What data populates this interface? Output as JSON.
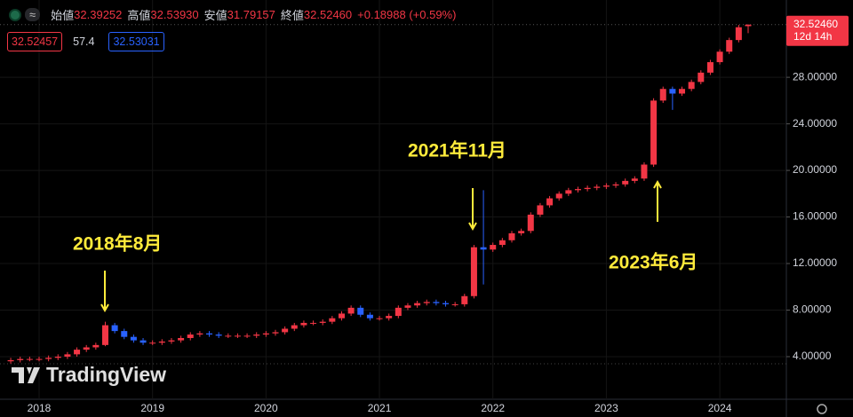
{
  "chart_data": {
    "type": "candlestick",
    "header": {
      "symbol": "≈",
      "items": [
        {
          "label": "始値",
          "value": "32.39252"
        },
        {
          "label": "高値",
          "value": "32.53930"
        },
        {
          "label": "安値",
          "value": "31.79157"
        },
        {
          "label": "終値",
          "value": "32.52460"
        }
      ],
      "change": "+0.18988 (+0.59%)"
    },
    "indicators": [
      "32.52457",
      "57.4",
      "32.53031"
    ],
    "last_price": {
      "value": 32.5246,
      "label": "32.52460"
    },
    "countdown": "12d 14h",
    "watermark": "TradingView",
    "annotations": [
      "2018年8月",
      "2021年11月",
      "2023年6月"
    ],
    "up_color": "#f23645",
    "down_color": "#2962ff",
    "categories": [
      null,
      null,
      null,
      "2018",
      null,
      null,
      null,
      null,
      null,
      null,
      null,
      null,
      null,
      null,
      null,
      "2019",
      null,
      null,
      null,
      null,
      null,
      null,
      null,
      null,
      null,
      null,
      null,
      "2020",
      null,
      null,
      null,
      null,
      null,
      null,
      null,
      null,
      null,
      null,
      null,
      "2021",
      null,
      null,
      null,
      null,
      null,
      null,
      null,
      null,
      null,
      null,
      null,
      "2022",
      null,
      null,
      null,
      null,
      null,
      null,
      null,
      null,
      null,
      null,
      null,
      "2023",
      null,
      null,
      null,
      null,
      null,
      null,
      null,
      null,
      null,
      null,
      null,
      "2024",
      null,
      null,
      null
    ],
    "open": [
      3.6,
      3.7,
      3.8,
      3.8,
      3.8,
      3.9,
      4.0,
      4.2,
      4.6,
      4.8,
      5.0,
      6.7,
      6.2,
      5.7,
      5.4,
      5.2,
      5.2,
      5.3,
      5.4,
      5.6,
      5.9,
      6.0,
      5.9,
      5.8,
      5.8,
      5.8,
      5.8,
      5.9,
      6.0,
      6.1,
      6.4,
      6.7,
      6.9,
      6.9,
      7.0,
      7.3,
      7.7,
      8.2,
      7.6,
      7.3,
      7.3,
      7.5,
      8.2,
      8.4,
      8.6,
      8.7,
      8.6,
      8.5,
      8.5,
      9.2,
      13.4,
      13.2,
      13.6,
      14.0,
      14.6,
      14.8,
      16.2,
      17.0,
      17.6,
      18.0,
      18.3,
      18.4,
      18.5,
      18.6,
      18.7,
      18.8,
      19.1,
      19.3,
      20.5,
      26.0,
      27.0,
      26.6,
      27.0,
      27.6,
      28.4,
      29.3,
      30.2,
      31.2,
      32.39252
    ],
    "high": [
      3.9,
      4.0,
      4.0,
      4.0,
      4.1,
      4.2,
      4.4,
      4.8,
      5.0,
      5.2,
      7.0,
      6.9,
      6.4,
      5.9,
      5.6,
      5.4,
      5.5,
      5.6,
      5.8,
      6.1,
      6.2,
      6.2,
      6.1,
      6.0,
      6.0,
      6.0,
      6.1,
      6.2,
      6.3,
      6.6,
      6.9,
      7.1,
      7.1,
      7.2,
      7.5,
      7.9,
      8.4,
      8.4,
      7.8,
      7.5,
      7.7,
      8.4,
      8.6,
      8.8,
      8.9,
      8.9,
      8.8,
      8.7,
      9.4,
      13.6,
      18.3,
      13.8,
      14.2,
      14.8,
      15.0,
      16.4,
      17.2,
      17.8,
      18.2,
      18.5,
      18.6,
      18.7,
      18.8,
      18.9,
      19.0,
      19.3,
      19.5,
      20.7,
      26.2,
      27.2,
      27.2,
      27.2,
      27.8,
      28.6,
      29.5,
      30.4,
      31.4,
      32.5,
      32.5393
    ],
    "low": [
      3.4,
      3.5,
      3.6,
      3.6,
      3.6,
      3.7,
      3.8,
      4.0,
      4.4,
      4.6,
      4.9,
      6.0,
      5.5,
      5.2,
      5.0,
      5.0,
      5.0,
      5.1,
      5.2,
      5.4,
      5.7,
      5.7,
      5.6,
      5.6,
      5.6,
      5.6,
      5.6,
      5.7,
      5.8,
      5.9,
      6.2,
      6.5,
      6.7,
      6.7,
      6.8,
      7.1,
      7.5,
      7.4,
      7.1,
      7.1,
      7.1,
      7.3,
      8.0,
      8.2,
      8.4,
      8.4,
      8.3,
      8.3,
      8.3,
      9.0,
      10.2,
      13.0,
      13.4,
      13.8,
      14.4,
      14.6,
      16.0,
      16.8,
      17.4,
      17.8,
      18.1,
      18.2,
      18.3,
      18.4,
      18.5,
      18.6,
      18.9,
      19.1,
      20.3,
      25.8,
      25.2,
      26.4,
      26.8,
      27.4,
      28.2,
      29.1,
      30.0,
      31.0,
      31.79157
    ],
    "close": [
      3.7,
      3.8,
      3.8,
      3.8,
      3.9,
      4.0,
      4.2,
      4.6,
      4.8,
      5.0,
      6.7,
      6.2,
      5.7,
      5.4,
      5.2,
      5.2,
      5.3,
      5.4,
      5.6,
      5.9,
      6.0,
      5.9,
      5.8,
      5.8,
      5.8,
      5.8,
      5.9,
      6.0,
      6.1,
      6.4,
      6.7,
      6.9,
      6.9,
      7.0,
      7.3,
      7.7,
      8.2,
      7.6,
      7.3,
      7.3,
      7.5,
      8.2,
      8.4,
      8.6,
      8.7,
      8.6,
      8.5,
      8.5,
      9.2,
      13.4,
      13.2,
      13.6,
      14.0,
      14.6,
      14.8,
      16.2,
      17.0,
      17.6,
      18.0,
      18.3,
      18.4,
      18.5,
      18.6,
      18.7,
      18.8,
      19.1,
      19.3,
      20.5,
      26.0,
      27.0,
      26.6,
      27.0,
      27.6,
      28.4,
      29.3,
      30.2,
      31.2,
      32.3,
      32.5246
    ],
    "ylim": [
      0.34,
      34.64
    ],
    "yticks": [
      {
        "value": 4,
        "label": "4.00000"
      },
      {
        "value": 8,
        "label": "8.00000"
      },
      {
        "value": 12,
        "label": "12.00000"
      },
      {
        "value": 16,
        "label": "16.00000"
      },
      {
        "value": 20,
        "label": "20.00000"
      },
      {
        "value": 24,
        "label": "24.00000"
      },
      {
        "value": 28,
        "label": "28.00000"
      }
    ],
    "grid": true
  }
}
